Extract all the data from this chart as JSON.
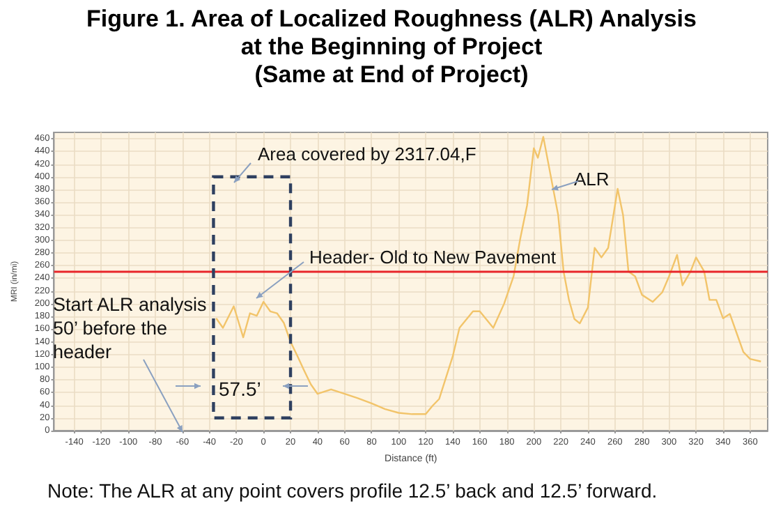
{
  "chart_data": {
    "type": "line",
    "title": "Figure 1. Area of Localized Roughness (ALR) Analysis\nat the Beginning of Project\n(Same at End of Project)",
    "xlabel": "Distance (ft)",
    "ylabel": "MRI (in/mi)",
    "x": [
      -35,
      -30,
      -22,
      -15,
      -10,
      -5,
      0,
      5,
      10,
      15,
      20,
      25,
      30,
      35,
      40,
      50,
      60,
      70,
      80,
      90,
      100,
      110,
      120,
      125,
      130,
      140,
      145,
      155,
      160,
      170,
      178,
      185,
      190,
      195,
      200,
      203,
      207,
      212,
      218,
      222,
      226,
      230,
      234,
      240,
      245,
      250,
      255,
      262,
      266,
      270,
      275,
      280,
      288,
      295,
      300,
      306,
      310,
      316,
      320,
      326,
      330,
      335,
      340,
      345,
      350,
      355,
      360,
      368
    ],
    "series": [
      {
        "color": "#f2c46a",
        "values": [
          177,
          162,
          196,
          147,
          185,
          181,
          203,
          188,
          185,
          170,
          140,
          118,
          95,
          73,
          58,
          65,
          58,
          51,
          43,
          34,
          28,
          26,
          26,
          39,
          50,
          117,
          162,
          188,
          188,
          162,
          200,
          243,
          303,
          355,
          445,
          430,
          463,
          407,
          340,
          251,
          206,
          176,
          169,
          194,
          288,
          273,
          288,
          381,
          340,
          251,
          243,
          214,
          203,
          218,
          243,
          277,
          229,
          251,
          273,
          251,
          206,
          206,
          177,
          184,
          154,
          124,
          113,
          109
        ]
      }
    ],
    "xlim": [
      -155,
      373
    ],
    "ylim": [
      0,
      470
    ],
    "xticks": [
      -140,
      -120,
      -100,
      -80,
      -60,
      -40,
      -20,
      0,
      20,
      40,
      60,
      80,
      100,
      120,
      140,
      160,
      180,
      200,
      220,
      240,
      260,
      280,
      300,
      320,
      340,
      360
    ],
    "yticks": [
      0,
      20,
      40,
      60,
      80,
      100,
      120,
      140,
      160,
      180,
      200,
      220,
      240,
      260,
      280,
      300,
      320,
      340,
      360,
      380,
      400,
      420,
      440,
      460
    ],
    "grid": true,
    "marker": "none",
    "line_style": "solid",
    "ref_lines": [
      {
        "axis": "y",
        "value": 250,
        "color": "#e8262a"
      }
    ],
    "annotations": [
      "Area covered by 2317.04,F",
      "ALR",
      "Header- Old to New Pavement",
      "Start ALR analysis\n50’ before the\nheader",
      "57.5’",
      "Note: The ALR at any point covers profile 12.5’ back and 12.5’ forward."
    ]
  }
}
